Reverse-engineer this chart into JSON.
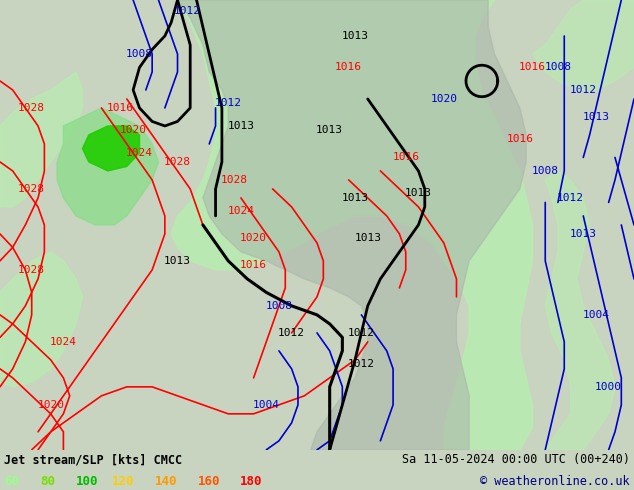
{
  "title_left": "Jet stream/SLP [kts] CMCC",
  "title_right": "Sa 11-05-2024 00:00 UTC (00+240)",
  "copyright": "© weatheronline.co.uk",
  "legend_values": [
    60,
    80,
    100,
    120,
    140,
    160,
    180
  ],
  "legend_colors": [
    "#99ff88",
    "#77dd00",
    "#00bb00",
    "#ffcc00",
    "#ff9900",
    "#ff5500",
    "#ff0000"
  ],
  "bg_color": "#c8d4c0",
  "land_color": "#aab8aa",
  "sea_color": "#c8d4c0",
  "jet_light_green": "#b8ecb0",
  "jet_mid_green": "#88dd88",
  "jet_dark_green": "#44bb44",
  "jet_bright_green": "#22cc00",
  "figure_width": 6.34,
  "figure_height": 4.9,
  "dpi": 100
}
